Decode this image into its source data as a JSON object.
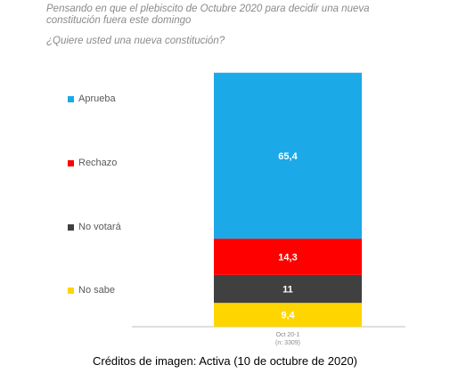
{
  "question": {
    "title": "Pensando en que el plebiscito de Octubre 2020 para decidir una nueva constitución fuera este domingo",
    "subtitle": "¿Quiere usted una nueva constitución?"
  },
  "chart_data": {
    "type": "bar",
    "stacked": true,
    "categories": [
      "Oct 20-1"
    ],
    "category_note": "(n: 3309)",
    "ylim": [
      0,
      100
    ],
    "grid": false,
    "legend_position": "left",
    "series": [
      {
        "name": "No sabe",
        "values": [
          9.4
        ],
        "label": "9,4",
        "color": "#FFD500"
      },
      {
        "name": "No votará",
        "values": [
          11
        ],
        "label": "11",
        "color": "#404040"
      },
      {
        "name": "Rechazo",
        "values": [
          14.3
        ],
        "label": "14,3",
        "color": "#FF0000"
      },
      {
        "name": "Aprueba",
        "values": [
          65.4
        ],
        "label": "65,4",
        "color": "#1BA9E8"
      }
    ]
  },
  "legend_order": [
    "Aprueba",
    "Rechazo",
    "No votará",
    "No sabe"
  ],
  "caption": "Créditos de imagen: Activa (10 de octubre de 2020)"
}
